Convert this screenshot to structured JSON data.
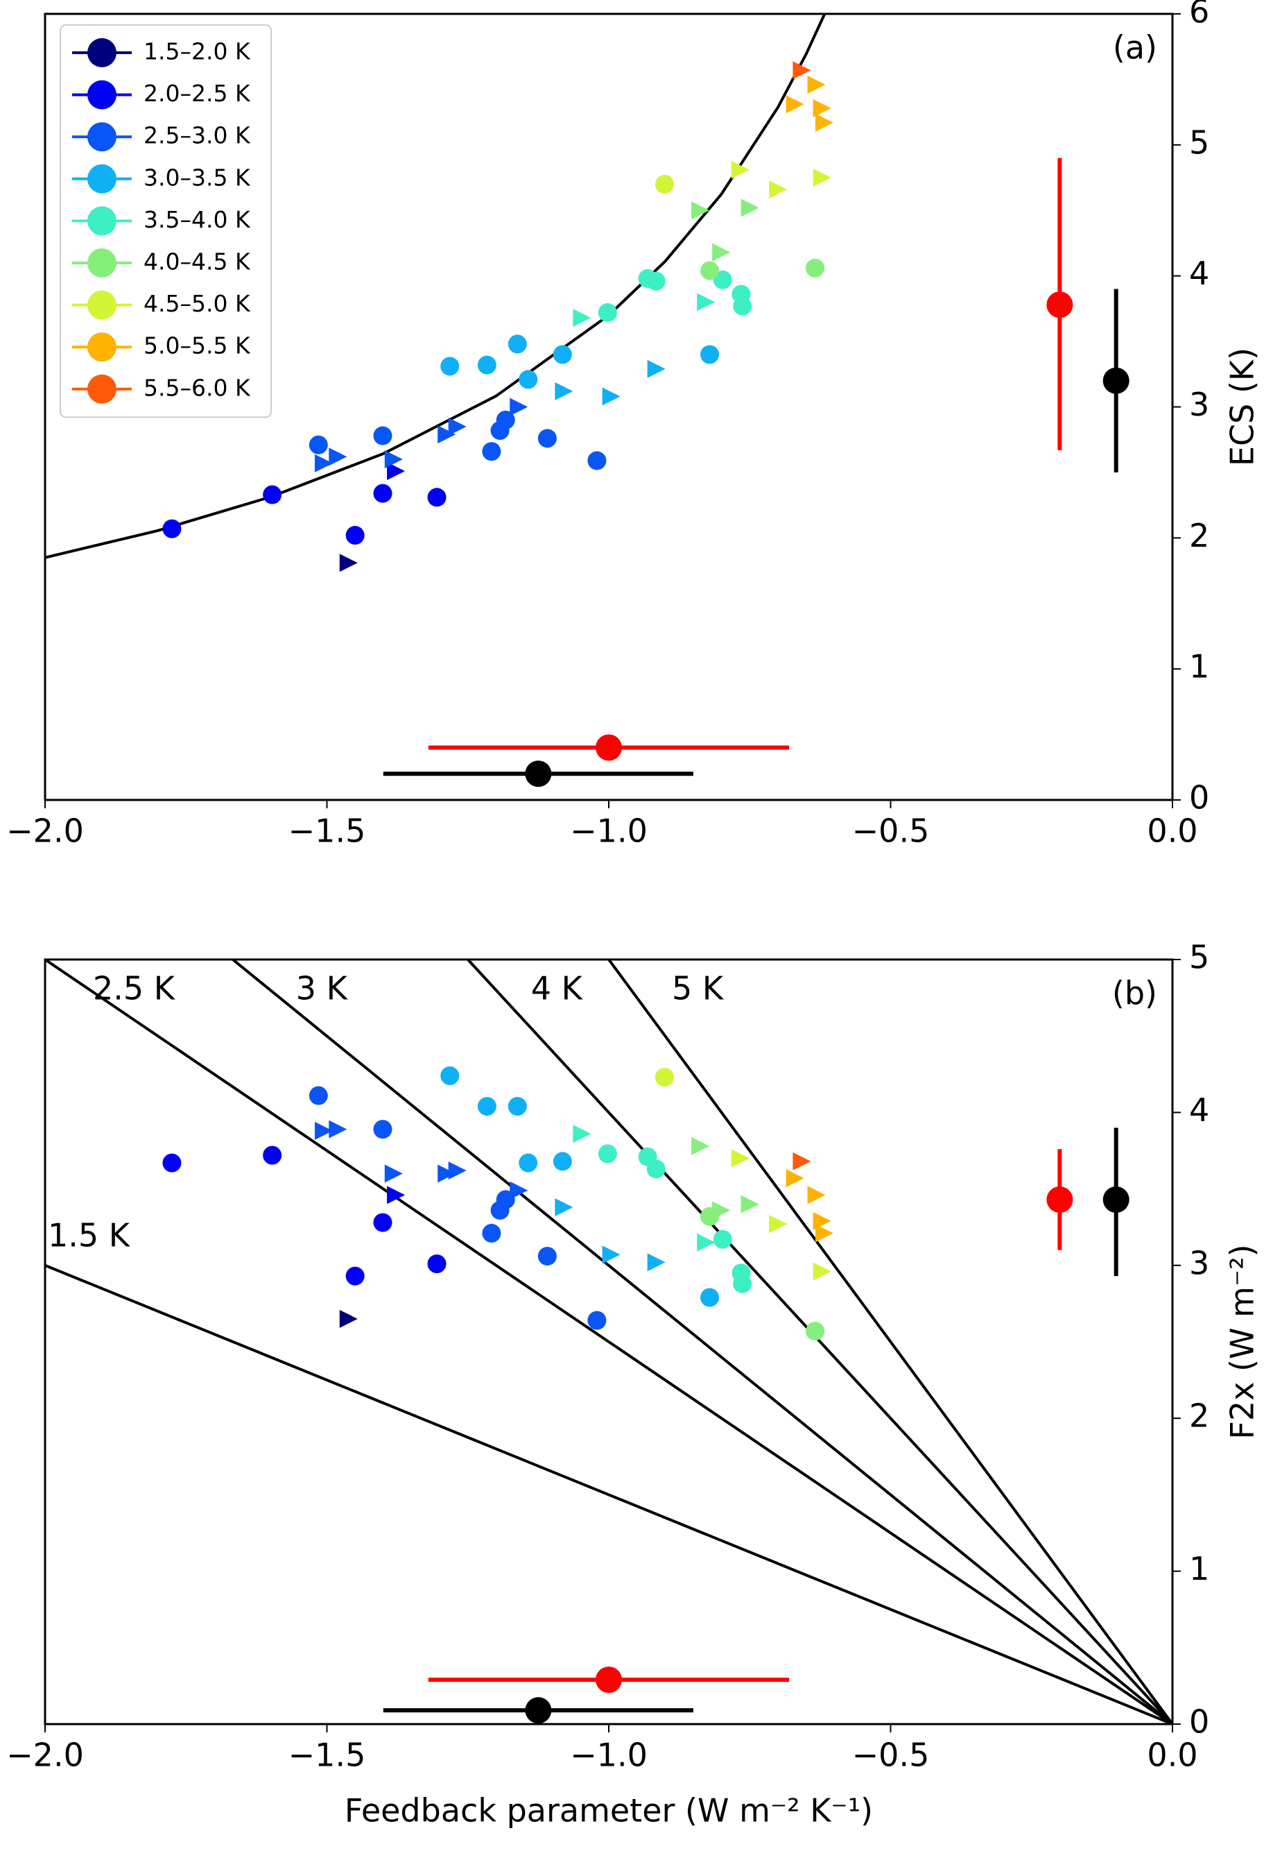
{
  "chart_data": [
    {
      "type": "scatter",
      "title": "(a)",
      "ylabel": "ECS (K)",
      "xlim": [
        -2.0,
        0.0
      ],
      "ylim": [
        0,
        6
      ],
      "xticks": [
        {
          "value": -2.0,
          "label": "−2.0"
        },
        {
          "value": -1.5,
          "label": "−1.5"
        },
        {
          "value": -1.0,
          "label": "−1.0"
        },
        {
          "value": -0.5,
          "label": "−0.5"
        },
        {
          "value": 0.0,
          "label": "0.0"
        }
      ],
      "yticks": [
        0,
        1,
        2,
        3,
        4,
        5,
        6
      ],
      "legend": "upper left",
      "lines": [
        {
          "color": "#000000",
          "x": [
            -2.0,
            -1.8,
            -1.6,
            -1.4,
            -1.2,
            -1.0,
            -0.9,
            -0.8,
            -0.7,
            -0.65,
            -0.617
          ],
          "values": [
            1.85,
            2.056,
            2.313,
            2.643,
            3.083,
            3.7,
            4.111,
            4.625,
            5.286,
            5.692,
            6.0
          ]
        }
      ],
      "series": [
        {
          "name": "1.5–2.0 K",
          "color": "#00007f",
          "x": [
            -1.464
          ],
          "values": [
            1.81
          ],
          "marker": [
            "triangle"
          ]
        },
        {
          "name": "2.0–2.5 K",
          "color": "#0000f5",
          "x": [
            -1.775,
            -1.597,
            -1.45,
            -1.401,
            -1.305,
            -1.38
          ],
          "values": [
            2.07,
            2.33,
            2.02,
            2.34,
            2.31,
            2.51
          ],
          "marker": [
            "circle",
            "circle",
            "circle",
            "circle",
            "circle",
            "triangle"
          ]
        },
        {
          "name": "2.5–3.0 K",
          "color": "#0a55f5",
          "x": [
            -1.515,
            -1.401,
            -1.208,
            -1.193,
            -1.183,
            -1.109,
            -1.021,
            -1.508,
            -1.483,
            -1.384,
            -1.29,
            -1.271,
            -1.162
          ],
          "values": [
            2.71,
            2.78,
            2.66,
            2.82,
            2.9,
            2.76,
            2.59,
            2.57,
            2.62,
            2.6,
            2.79,
            2.85,
            3.0
          ],
          "marker": [
            "circle",
            "circle",
            "circle",
            "circle",
            "circle",
            "circle",
            "circle",
            "triangle",
            "triangle",
            "triangle",
            "triangle",
            "triangle",
            "triangle"
          ]
        },
        {
          "name": "3.0–3.5 K",
          "color": "#10b0f5",
          "x": [
            -1.282,
            -1.216,
            -1.162,
            -1.143,
            -1.082,
            -0.821,
            -1.082,
            -0.998,
            -0.918
          ],
          "values": [
            3.31,
            3.32,
            3.48,
            3.21,
            3.4,
            3.4,
            3.12,
            3.08,
            3.29
          ],
          "marker": [
            "circle",
            "circle",
            "circle",
            "circle",
            "circle",
            "circle",
            "triangle",
            "triangle",
            "triangle"
          ]
        },
        {
          "name": "3.5–4.0 K",
          "color": "#3cf0c4",
          "x": [
            -1.002,
            -0.931,
            -0.916,
            -0.798,
            -0.765,
            -0.763,
            -1.05,
            -0.83
          ],
          "values": [
            3.72,
            3.98,
            3.96,
            3.97,
            3.86,
            3.77,
            3.68,
            3.8
          ],
          "marker": [
            "circle",
            "circle",
            "circle",
            "circle",
            "circle",
            "circle",
            "triangle",
            "triangle"
          ]
        },
        {
          "name": "4.0–4.5 K",
          "color": "#86ee7c",
          "x": [
            -0.821,
            -0.634,
            -0.84,
            -0.803,
            -0.752
          ],
          "values": [
            4.04,
            4.06,
            4.5,
            4.18,
            4.52
          ],
          "marker": [
            "circle",
            "circle",
            "triangle",
            "triangle",
            "triangle"
          ]
        },
        {
          "name": "4.5–5.0 K",
          "color": "#d2f535",
          "x": [
            -0.901,
            -0.769,
            -0.702,
            -0.624
          ],
          "values": [
            4.7,
            4.81,
            4.66,
            4.75
          ],
          "marker": [
            "circle",
            "triangle",
            "triangle",
            "triangle"
          ]
        },
        {
          "name": "5.0–5.5 K",
          "color": "#ffb300",
          "x": [
            -0.672,
            -0.634,
            -0.624,
            -0.62
          ],
          "values": [
            5.31,
            5.46,
            5.28,
            5.17
          ],
          "marker": [
            "triangle",
            "triangle",
            "triangle",
            "triangle"
          ]
        },
        {
          "name": "5.5–6.0 K",
          "color": "#ff5a0a",
          "x": [
            -0.66
          ],
          "values": [
            5.57
          ],
          "marker": [
            "triangle"
          ]
        }
      ],
      "errorbars": [
        {
          "color": "#ff0000",
          "direction": "y",
          "x": -0.2,
          "y": 3.78,
          "range": [
            2.67,
            4.9
          ]
        },
        {
          "color": "#000000",
          "direction": "y",
          "x": -0.1,
          "y": 3.2,
          "range": [
            2.5,
            3.9
          ]
        },
        {
          "color": "#ff0000",
          "direction": "x",
          "x": -1.0,
          "y": 0.4,
          "range": [
            -1.32,
            -0.68
          ]
        },
        {
          "color": "#000000",
          "direction": "x",
          "x": -1.125,
          "y": 0.2,
          "range": [
            -1.4,
            -0.85
          ]
        }
      ]
    },
    {
      "type": "scatter",
      "title": "(b)",
      "xlabel": "Feedback parameter (W m⁻² K⁻¹)",
      "ylabel": "F2x (W m⁻²)",
      "xlim": [
        -2.0,
        0.0
      ],
      "ylim": [
        0,
        5
      ],
      "xticks": [
        {
          "value": -2.0,
          "label": "−2.0"
        },
        {
          "value": -1.5,
          "label": "−1.5"
        },
        {
          "value": -1.0,
          "label": "−1.0"
        },
        {
          "value": -0.5,
          "label": "−0.5"
        },
        {
          "value": 0.0,
          "label": "0.0"
        }
      ],
      "yticks": [
        0,
        1,
        2,
        3,
        4,
        5
      ],
      "lines": [
        {
          "label": "1.5 K",
          "color": "#000000",
          "x": [
            -2.0,
            0.0
          ],
          "values": [
            3.0,
            0
          ]
        },
        {
          "label": "2.5 K",
          "color": "#000000",
          "x": [
            -2.0,
            0.0
          ],
          "values": [
            5.0,
            0
          ]
        },
        {
          "label": "3 K",
          "color": "#000000",
          "x": [
            -1.667,
            0.0
          ],
          "values": [
            5.0,
            0
          ]
        },
        {
          "label": "4 K",
          "color": "#000000",
          "x": [
            -1.25,
            0.0
          ],
          "values": [
            5.0,
            0
          ]
        },
        {
          "label": "5 K",
          "color": "#000000",
          "x": [
            -1.0,
            0.0
          ],
          "values": [
            5.0,
            0
          ]
        }
      ],
      "series": [
        {
          "color": "#00007f",
          "x": [
            -1.464
          ],
          "values": [
            2.65
          ],
          "marker": [
            "triangle"
          ]
        },
        {
          "color": "#0000f5",
          "x": [
            -1.775,
            -1.597,
            -1.45,
            -1.401,
            -1.305,
            -1.38
          ],
          "values": [
            3.67,
            3.72,
            2.93,
            3.28,
            3.01,
            3.46
          ],
          "marker": [
            "circle",
            "circle",
            "circle",
            "circle",
            "circle",
            "triangle"
          ]
        },
        {
          "color": "#0a55f5",
          "x": [
            -1.515,
            -1.401,
            -1.208,
            -1.193,
            -1.183,
            -1.109,
            -1.021,
            -1.508,
            -1.483,
            -1.384,
            -1.29,
            -1.271,
            -1.162
          ],
          "values": [
            4.11,
            3.89,
            3.21,
            3.36,
            3.43,
            3.06,
            2.64,
            3.88,
            3.89,
            3.6,
            3.6,
            3.62,
            3.49
          ],
          "marker": [
            "circle",
            "circle",
            "circle",
            "circle",
            "circle",
            "circle",
            "circle",
            "triangle",
            "triangle",
            "triangle",
            "triangle",
            "triangle",
            "triangle"
          ]
        },
        {
          "color": "#10b0f5",
          "x": [
            -1.282,
            -1.216,
            -1.162,
            -1.143,
            -1.082,
            -0.821,
            -1.082,
            -0.998,
            -0.918
          ],
          "values": [
            4.24,
            4.04,
            4.04,
            3.67,
            3.68,
            2.79,
            3.38,
            3.07,
            3.02
          ],
          "marker": [
            "circle",
            "circle",
            "circle",
            "circle",
            "circle",
            "circle",
            "triangle",
            "triangle",
            "triangle"
          ]
        },
        {
          "color": "#3cf0c4",
          "x": [
            -1.002,
            -0.931,
            -0.916,
            -0.798,
            -0.765,
            -0.763,
            -1.05,
            -0.83
          ],
          "values": [
            3.73,
            3.71,
            3.63,
            3.17,
            2.95,
            2.88,
            3.86,
            3.15
          ],
          "marker": [
            "circle",
            "circle",
            "circle",
            "circle",
            "circle",
            "circle",
            "triangle",
            "triangle"
          ]
        },
        {
          "color": "#86ee7c",
          "x": [
            -0.821,
            -0.634,
            -0.84,
            -0.803,
            -0.752
          ],
          "values": [
            3.32,
            2.57,
            3.78,
            3.36,
            3.4
          ],
          "marker": [
            "circle",
            "circle",
            "triangle",
            "triangle",
            "triangle"
          ]
        },
        {
          "color": "#d2f535",
          "x": [
            -0.901,
            -0.769,
            -0.702,
            -0.624
          ],
          "values": [
            4.23,
            3.7,
            3.27,
            2.96
          ],
          "marker": [
            "circle",
            "triangle",
            "triangle",
            "triangle"
          ]
        },
        {
          "color": "#ffb300",
          "x": [
            -0.672,
            -0.634,
            -0.624,
            -0.62
          ],
          "values": [
            3.57,
            3.46,
            3.29,
            3.21
          ],
          "marker": [
            "triangle",
            "triangle",
            "triangle",
            "triangle"
          ]
        },
        {
          "color": "#ff5a0a",
          "x": [
            -0.66
          ],
          "values": [
            3.68
          ],
          "marker": [
            "triangle"
          ]
        }
      ],
      "errorbars": [
        {
          "color": "#ff0000",
          "direction": "y",
          "x": -0.2,
          "y": 3.43,
          "range": [
            3.1,
            3.76
          ]
        },
        {
          "color": "#000000",
          "direction": "y",
          "x": -0.1,
          "y": 3.43,
          "range": [
            2.93,
            3.9
          ]
        },
        {
          "color": "#ff0000",
          "direction": "x",
          "x": -1.0,
          "y": 0.29,
          "range": [
            -1.32,
            -0.68
          ]
        },
        {
          "color": "#000000",
          "direction": "x",
          "x": -1.125,
          "y": 0.09,
          "range": [
            -1.4,
            -0.85
          ]
        }
      ]
    }
  ]
}
